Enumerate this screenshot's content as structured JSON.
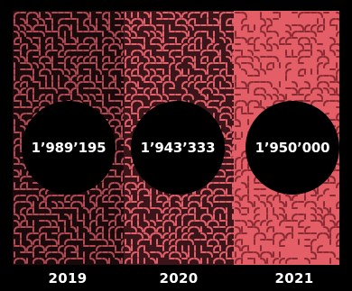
{
  "panels": [
    {
      "year": "2019",
      "value": "1’989’195",
      "base_color": "#1b0a0c",
      "pattern_color": "#b04a54",
      "density": 1.0
    },
    {
      "year": "2020",
      "value": "1’943’333",
      "base_color": "#3a1519",
      "pattern_color": "#e2606a",
      "density": 0.8
    },
    {
      "year": "2021",
      "value": "1’950’000",
      "base_color": "#e35e66",
      "pattern_color": "#8a2a33",
      "density": 0.6
    }
  ]
}
